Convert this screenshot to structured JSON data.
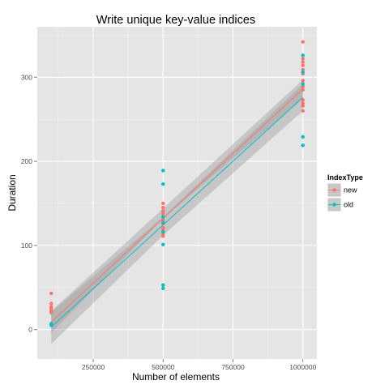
{
  "chart_data": {
    "type": "scatter",
    "title": "Write unique key-value indices",
    "xlabel": "Number of elements",
    "ylabel": "Duration",
    "xlim": [
      50000,
      1050000
    ],
    "ylim": [
      -35,
      360
    ],
    "x_ticks": [
      250000,
      500000,
      750000,
      1000000
    ],
    "x_tick_labels": [
      "250000",
      "500000",
      "750000",
      "1000000"
    ],
    "y_ticks": [
      0,
      100,
      200,
      300
    ],
    "y_tick_labels": [
      "0",
      "100",
      "200",
      "300"
    ],
    "grid": true,
    "background": "#e5e5e5",
    "legend": {
      "title": "IndexType",
      "position": "right"
    },
    "series": [
      {
        "name": "new",
        "color": "#f8766d",
        "points": [
          [
            100000,
            43
          ],
          [
            100000,
            31
          ],
          [
            100000,
            27
          ],
          [
            100000,
            25
          ],
          [
            100000,
            23
          ],
          [
            100000,
            21
          ],
          [
            100000,
            20
          ],
          [
            500000,
            150
          ],
          [
            500000,
            145
          ],
          [
            500000,
            141
          ],
          [
            500000,
            138
          ],
          [
            500000,
            130
          ],
          [
            500000,
            126
          ],
          [
            500000,
            121
          ],
          [
            500000,
            119
          ],
          [
            500000,
            116
          ],
          [
            500000,
            113
          ],
          [
            500000,
            111
          ],
          [
            1000000,
            342
          ],
          [
            1000000,
            322
          ],
          [
            1000000,
            318
          ],
          [
            1000000,
            314
          ],
          [
            1000000,
            309
          ],
          [
            1000000,
            304
          ],
          [
            1000000,
            296
          ],
          [
            1000000,
            289
          ],
          [
            1000000,
            285
          ],
          [
            1000000,
            273
          ],
          [
            1000000,
            269
          ],
          [
            1000000,
            266
          ],
          [
            1000000,
            260
          ]
        ],
        "fit": [
          [
            100000,
            9
          ],
          [
            1000000,
            286
          ]
        ],
        "ci": {
          "upper": [
            [
              100000,
              22
            ],
            [
              500000,
              144
            ],
            [
              1000000,
              297
            ]
          ],
          "lower": [
            [
              100000,
              -4
            ],
            [
              500000,
              132
            ],
            [
              1000000,
              275
            ]
          ]
        }
      },
      {
        "name": "old",
        "color": "#00bfc4",
        "points": [
          [
            100000,
            7
          ],
          [
            100000,
            5
          ],
          [
            500000,
            189
          ],
          [
            500000,
            173
          ],
          [
            500000,
            134
          ],
          [
            500000,
            127
          ],
          [
            500000,
            116
          ],
          [
            500000,
            101
          ],
          [
            500000,
            53
          ],
          [
            500000,
            49
          ],
          [
            1000000,
            326
          ],
          [
            1000000,
            306
          ],
          [
            1000000,
            292
          ],
          [
            1000000,
            229
          ],
          [
            1000000,
            219
          ]
        ],
        "fit": [
          [
            100000,
            3
          ],
          [
            1000000,
            276
          ]
        ],
        "ci": {
          "upper": [
            [
              100000,
              21
            ],
            [
              500000,
              134
            ],
            [
              1000000,
              292
            ]
          ],
          "lower": [
            [
              100000,
              -17
            ],
            [
              500000,
              112
            ],
            [
              1000000,
              260
            ]
          ]
        }
      }
    ]
  }
}
